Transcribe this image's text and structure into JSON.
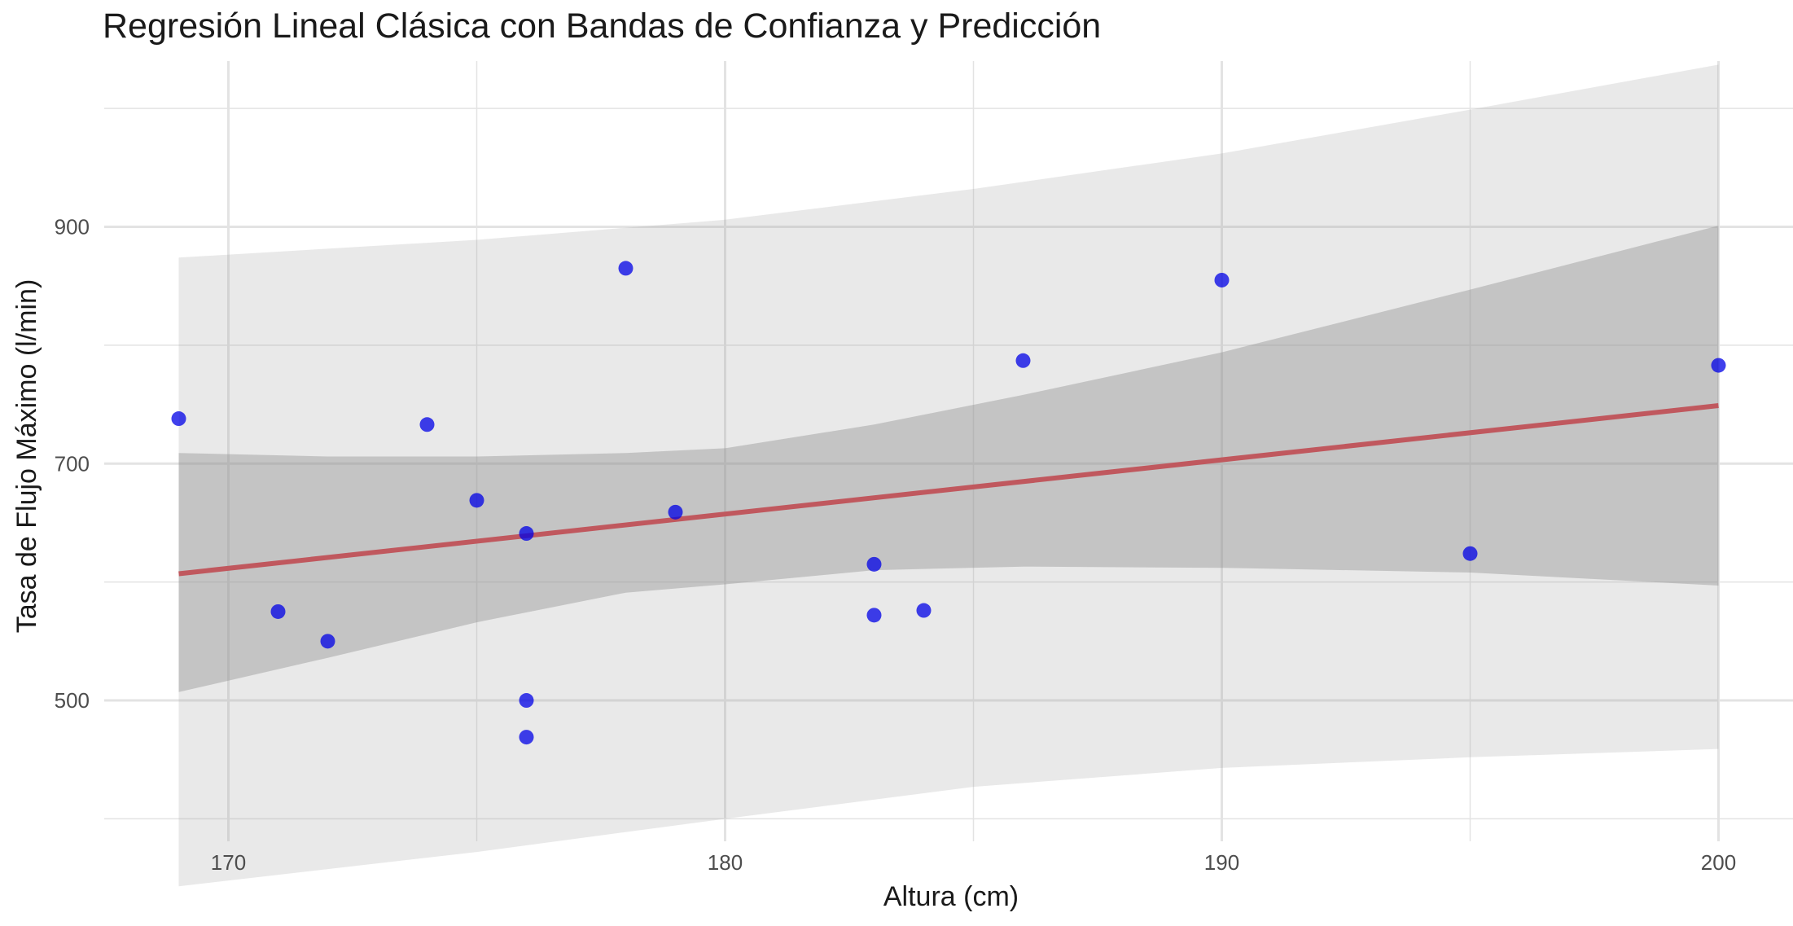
{
  "chart_data": {
    "type": "scatter",
    "title": "Regresión Lineal Clásica con Bandas de Confianza y Predicción",
    "xlabel": "Altura (cm)",
    "ylabel": "Tasa de Flujo Máximo (l/min)",
    "xlim": [
      167.5,
      201.5
    ],
    "ylim": [
      381,
      1040
    ],
    "x_ticks": [
      170,
      180,
      190,
      200
    ],
    "x_minor_ticks": [
      175,
      185,
      195
    ],
    "y_ticks": [
      500,
      700,
      900
    ],
    "y_minor_ticks": [
      400,
      600,
      800,
      1000
    ],
    "grid": true,
    "points": [
      {
        "x": 169,
        "y": 738
      },
      {
        "x": 171,
        "y": 575
      },
      {
        "x": 172,
        "y": 550
      },
      {
        "x": 174,
        "y": 733
      },
      {
        "x": 175,
        "y": 669
      },
      {
        "x": 176,
        "y": 641
      },
      {
        "x": 176,
        "y": 500
      },
      {
        "x": 176,
        "y": 469
      },
      {
        "x": 178,
        "y": 865
      },
      {
        "x": 179,
        "y": 659
      },
      {
        "x": 183,
        "y": 615
      },
      {
        "x": 183,
        "y": 572
      },
      {
        "x": 184,
        "y": 576
      },
      {
        "x": 186,
        "y": 787
      },
      {
        "x": 190,
        "y": 855
      },
      {
        "x": 195,
        "y": 624
      },
      {
        "x": 200,
        "y": 783
      }
    ],
    "regression_line": {
      "x": [
        169,
        200
      ],
      "y": [
        607,
        749
      ]
    },
    "confidence_band": {
      "x": [
        169,
        172,
        175,
        178,
        180,
        183,
        186,
        190,
        195,
        200
      ],
      "upper": [
        709,
        706,
        706,
        709,
        713,
        733,
        758,
        794,
        847,
        901
      ],
      "lower": [
        507,
        536,
        566,
        591,
        598,
        610,
        613,
        612,
        608,
        597
      ]
    },
    "prediction_band": {
      "x": [
        169,
        175,
        180,
        185,
        190,
        195,
        200
      ],
      "upper": [
        874,
        889,
        906,
        932,
        962,
        999,
        1037
      ],
      "lower": [
        343,
        372,
        400,
        427,
        443,
        452,
        459
      ]
    },
    "colors": {
      "points": "#0000e6",
      "regression_line": "#c0585e",
      "confidence_band": "#bdbdbd",
      "prediction_band": "#e8e8e8",
      "grid": "#e3e3e3"
    }
  }
}
